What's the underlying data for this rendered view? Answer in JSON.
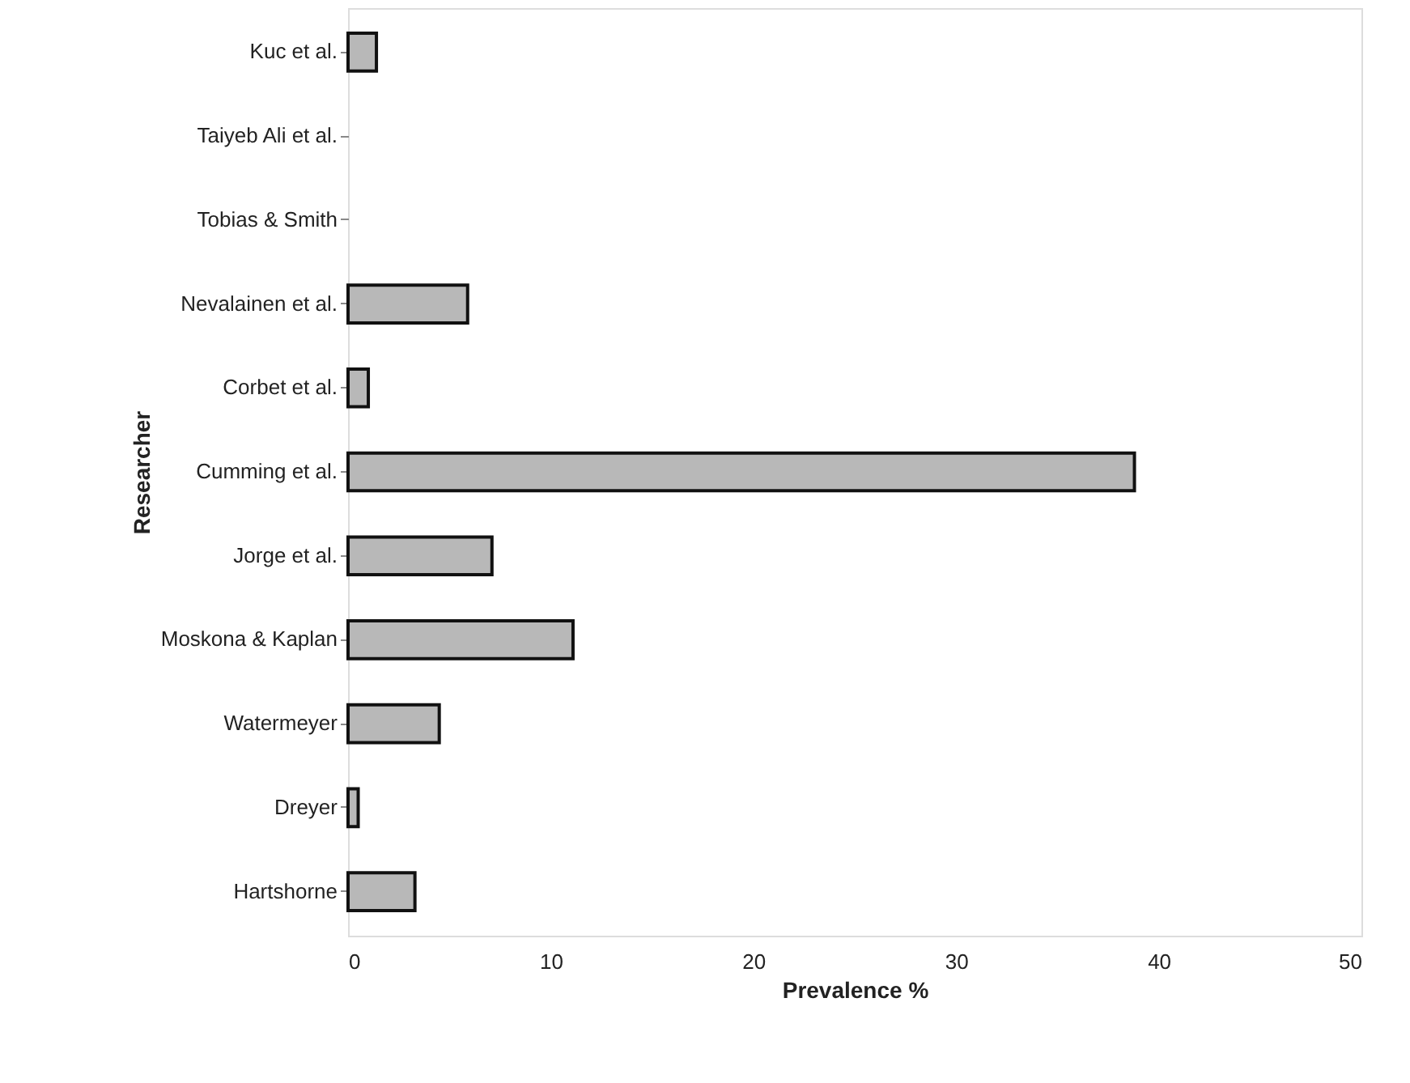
{
  "chart_data": {
    "type": "bar",
    "orientation": "horizontal",
    "xlabel": "Prevalence %",
    "ylabel": "Researcher",
    "categories": [
      "Kuc et al.",
      "Taiyeb Ali et al.",
      "Tobias & Smith",
      "Nevalainen et al.",
      "Corbet et al.",
      "Cumming et al.",
      "Jorge et al.",
      "Moskona & Kaplan",
      "Watermeyer",
      "Dreyer",
      "Hartshorne"
    ],
    "values": [
      1.4,
      0,
      0,
      5.9,
      1.0,
      38.8,
      7.1,
      11.1,
      4.5,
      0.5,
      3.3
    ],
    "color": "#b8b8b8",
    "xlim": [
      0,
      50
    ],
    "xticks": [
      0,
      10,
      20,
      30,
      40,
      50
    ],
    "grid": false
  }
}
